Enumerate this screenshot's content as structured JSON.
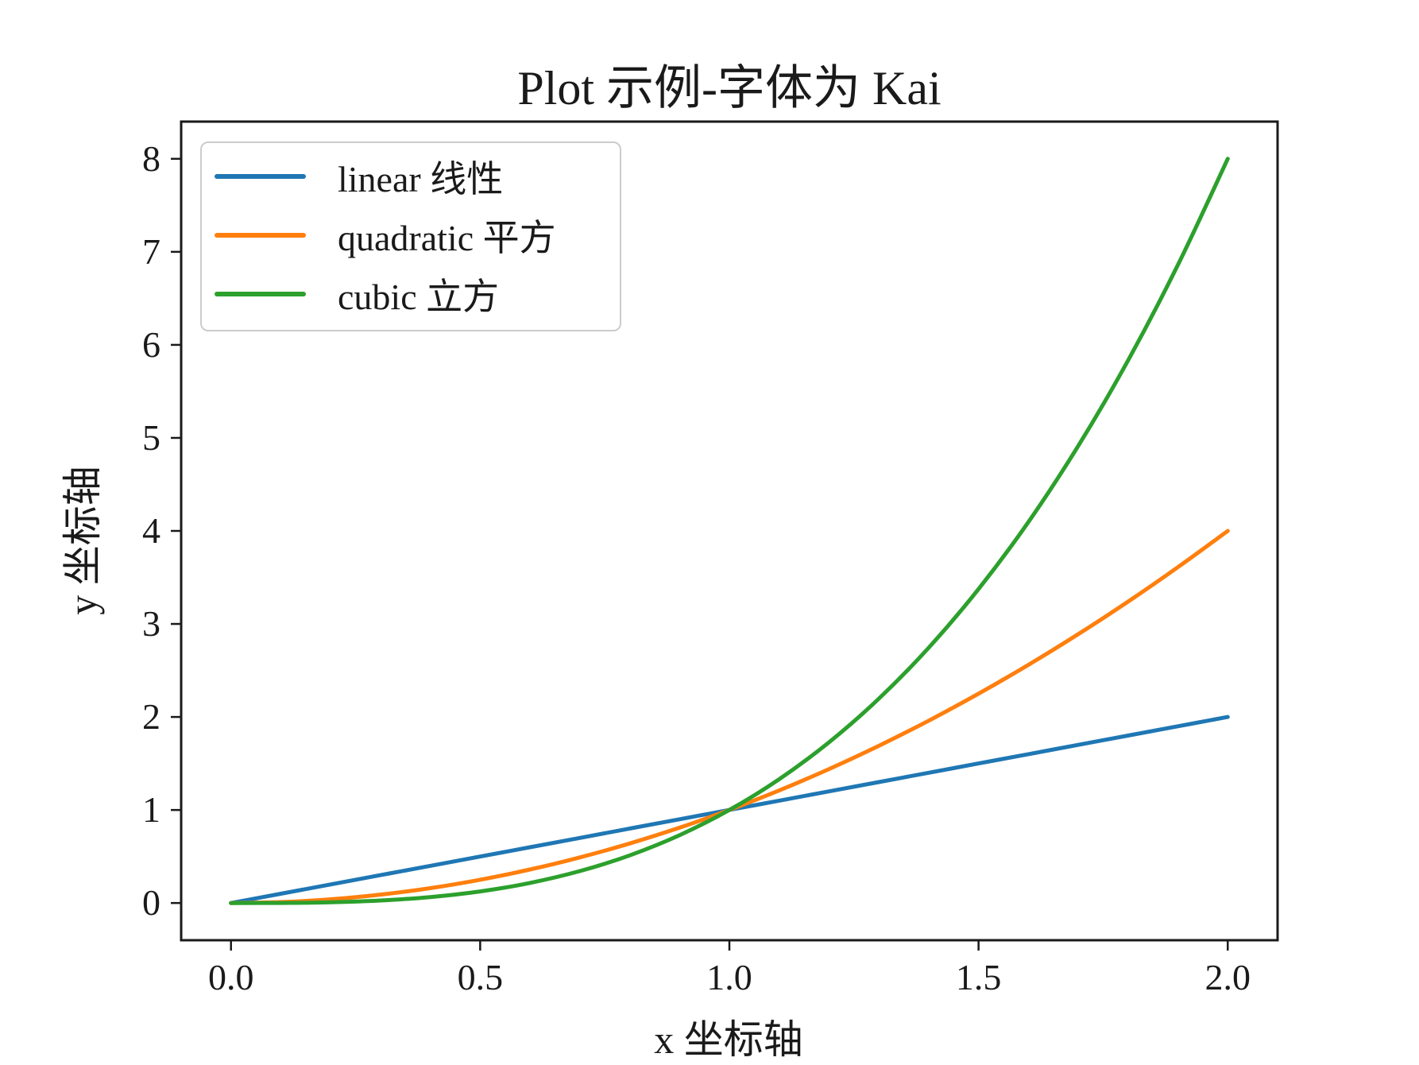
{
  "page": {
    "background": "#ffffff"
  },
  "chart_data": {
    "type": "line",
    "title": "Plot 示例-字体为 Kai",
    "xlabel": "x 坐标轴",
    "ylabel": "y 坐标轴",
    "grid": false,
    "xlim": [
      -0.1,
      2.1
    ],
    "ylim": [
      -0.4,
      8.4
    ],
    "x_tick_labels": [
      "0.0",
      "0.5",
      "1.0",
      "1.5",
      "2.0"
    ],
    "x_tick_values": [
      0,
      0.5,
      1.0,
      1.5,
      2.0
    ],
    "y_tick_labels": [
      "0",
      "1",
      "2",
      "3",
      "4",
      "5",
      "6",
      "7",
      "8"
    ],
    "y_tick_values": [
      0,
      1,
      2,
      3,
      4,
      5,
      6,
      7,
      8
    ],
    "axis_color": "#1a1a1a",
    "text_color": "#1a1a1a",
    "legend": {
      "position": "upper left"
    },
    "x": [
      0,
      0.1,
      0.2,
      0.3,
      0.4,
      0.5,
      0.6,
      0.7,
      0.8,
      0.9,
      1.0,
      1.1,
      1.2,
      1.3,
      1.4,
      1.5,
      1.6,
      1.7,
      1.8,
      1.9,
      2.0
    ],
    "series": [
      {
        "name": "linear 线性",
        "color": "#1f77b4",
        "values": [
          0,
          0.1,
          0.2,
          0.3,
          0.4,
          0.5,
          0.6,
          0.7,
          0.8,
          0.9,
          1.0,
          1.1,
          1.2,
          1.3,
          1.4,
          1.5,
          1.6,
          1.7,
          1.8,
          1.9,
          2.0
        ]
      },
      {
        "name": "quadratic 平方",
        "color": "#ff7f0e",
        "values": [
          0,
          0.01,
          0.04,
          0.09,
          0.16,
          0.25,
          0.36,
          0.49,
          0.64,
          0.81,
          1.0,
          1.21,
          1.44,
          1.69,
          1.96,
          2.25,
          2.56,
          2.89,
          3.24,
          3.61,
          4.0
        ]
      },
      {
        "name": "cubic 立方",
        "color": "#2ca02c",
        "values": [
          0,
          0.001,
          0.008,
          0.027,
          0.064,
          0.125,
          0.216,
          0.343,
          0.512,
          0.729,
          1.0,
          1.331,
          1.728,
          2.197,
          2.744,
          3.375,
          4.096,
          4.913,
          5.832,
          6.859,
          8.0
        ]
      }
    ]
  }
}
